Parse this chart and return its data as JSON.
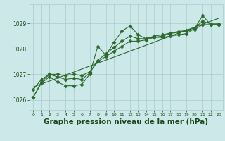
{
  "background_color": "#cce8e8",
  "grid_color": "#aacccc",
  "line_color": "#2d6a2d",
  "marker_color": "#2d6a2d",
  "title": "Graphe pression niveau de la mer (hPa)",
  "title_fontsize": 7.5,
  "title_color": "#1a4a1a",
  "tick_color": "#1a4a1a",
  "ylim": [
    1025.6,
    1029.75
  ],
  "yticks": [
    1026,
    1027,
    1028,
    1029
  ],
  "xlim": [
    -0.5,
    23.5
  ],
  "xticks": [
    0,
    1,
    2,
    3,
    4,
    5,
    6,
    7,
    8,
    9,
    10,
    11,
    12,
    13,
    14,
    15,
    16,
    17,
    18,
    19,
    20,
    21,
    22,
    23
  ],
  "series1_x": [
    0,
    1,
    2,
    3,
    4,
    5,
    6,
    7,
    8,
    9,
    10,
    11,
    12,
    13,
    14,
    15,
    16,
    17,
    18,
    19,
    20,
    21,
    22,
    23
  ],
  "series1_y": [
    1026.1,
    1026.65,
    1026.9,
    1026.7,
    1026.55,
    1026.55,
    1026.6,
    1027.0,
    1028.1,
    1027.75,
    1028.25,
    1028.7,
    1028.9,
    1028.55,
    1028.4,
    1028.45,
    1028.45,
    1028.5,
    1028.55,
    1028.6,
    1028.8,
    1029.3,
    1028.95,
    1028.95
  ],
  "series2_x": [
    0,
    1,
    2,
    3,
    4,
    5,
    6,
    7,
    8,
    9,
    10,
    11,
    12,
    13,
    14,
    15,
    16,
    17,
    18,
    19,
    20,
    21,
    22,
    23
  ],
  "series2_y": [
    1026.1,
    1026.7,
    1027.0,
    1027.0,
    1026.95,
    1027.0,
    1026.95,
    1027.1,
    1027.5,
    1027.7,
    1027.9,
    1028.1,
    1028.3,
    1028.3,
    1028.35,
    1028.45,
    1028.5,
    1028.6,
    1028.65,
    1028.7,
    1028.75,
    1028.95,
    1028.95,
    1028.95
  ],
  "series3_x": [
    0,
    1,
    2,
    3,
    4,
    5,
    6,
    7,
    8,
    9,
    10,
    11,
    12,
    13,
    14,
    15,
    16,
    17,
    18,
    19,
    20,
    21,
    22,
    23
  ],
  "series3_y": [
    1026.4,
    1026.8,
    1027.0,
    1026.9,
    1026.8,
    1026.85,
    1026.8,
    1027.05,
    1027.55,
    1027.8,
    1028.05,
    1028.3,
    1028.5,
    1028.4,
    1028.4,
    1028.5,
    1028.55,
    1028.62,
    1028.68,
    1028.72,
    1028.82,
    1029.08,
    1028.98,
    1028.98
  ],
  "series4_x": [
    0,
    23
  ],
  "series4_y": [
    1026.5,
    1029.2
  ]
}
